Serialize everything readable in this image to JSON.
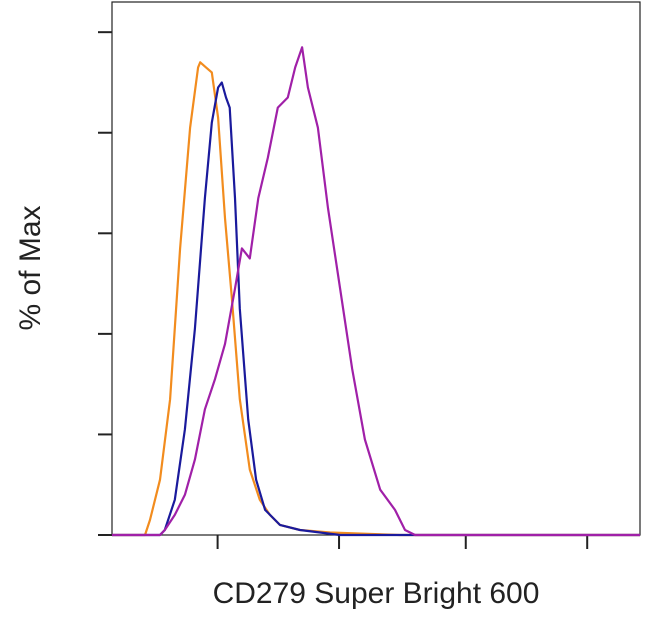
{
  "chart_data": {
    "type": "line",
    "xlabel": "CD279 Super Bright 600",
    "ylabel": "% of Max",
    "xlim": [
      0,
      100
    ],
    "ylim": [
      0,
      106
    ],
    "xticks": [
      20,
      43,
      67,
      90
    ],
    "yticks": [
      0,
      20,
      40,
      60,
      80,
      100
    ],
    "series": [
      {
        "color": "#f28c1e",
        "x": [
          0,
          5.3,
          6.25,
          7.2,
          9.1,
          11,
          12.9,
          14.8,
          16.3,
          16.7,
          17.8,
          18.9,
          20.1,
          21.4,
          22.7,
          24.2,
          26.1,
          28,
          29.9,
          31.8,
          35.6,
          41.3,
          54.5,
          100
        ],
        "values": [
          0,
          0,
          0,
          3,
          11,
          27,
          57,
          81,
          93,
          94,
          93,
          92,
          83,
          63,
          47,
          27,
          13,
          7,
          4,
          2,
          1,
          0.5,
          0,
          0
        ]
      },
      {
        "color": "#1a1a9c",
        "x": [
          0,
          9.1,
          10,
          11.9,
          13.8,
          15.7,
          17.6,
          18.9,
          20.1,
          20.8,
          21.6,
          22.3,
          23.3,
          24.2,
          25.8,
          27.3,
          29,
          31.8,
          35.6,
          43.2,
          100
        ],
        "values": [
          0,
          0,
          1,
          7,
          21,
          41,
          67,
          82,
          89,
          90,
          87,
          85,
          67,
          45,
          23,
          11,
          5,
          2,
          1,
          0,
          0
        ]
      },
      {
        "color": "#a020a8",
        "x": [
          0,
          9.1,
          10,
          11.9,
          13.8,
          15.7,
          17.6,
          19.5,
          21.4,
          23.3,
          24.6,
          26.1,
          27.7,
          29.5,
          31.4,
          33.3,
          34.7,
          36,
          37.1,
          39,
          40.9,
          43.2,
          45.5,
          47.9,
          50.8,
          53.6,
          55.5,
          57.4,
          100
        ],
        "values": [
          0,
          0,
          1,
          4,
          8,
          15,
          25,
          31,
          38,
          49,
          57,
          55,
          67,
          75,
          85,
          87,
          93,
          97,
          89,
          81,
          65,
          49,
          33,
          19,
          9,
          5,
          1,
          0,
          0
        ]
      }
    ]
  }
}
